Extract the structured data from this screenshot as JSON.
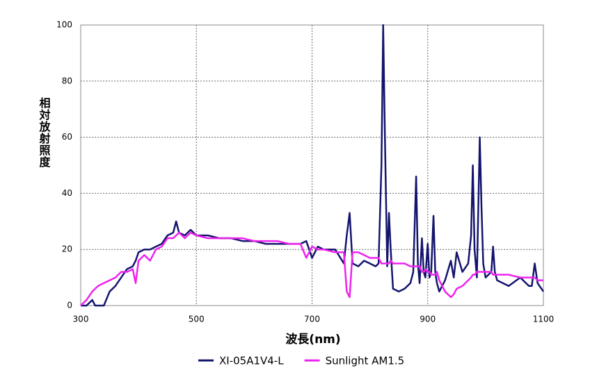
{
  "chart_data": {
    "type": "line",
    "x_label": "波長(nm)",
    "y_label": "相対放射照度",
    "x": [
      300,
      310,
      320,
      325,
      330,
      340,
      350,
      360,
      370,
      380,
      390,
      395,
      400,
      410,
      420,
      430,
      440,
      450,
      460,
      465,
      470,
      480,
      490,
      500,
      520,
      540,
      560,
      580,
      600,
      620,
      640,
      660,
      680,
      690,
      700,
      710,
      720,
      740,
      755,
      760,
      765,
      770,
      780,
      790,
      800,
      810,
      815,
      820,
      823,
      826,
      830,
      833,
      836,
      840,
      850,
      860,
      870,
      875,
      880,
      883,
      886,
      890,
      893,
      896,
      900,
      903,
      906,
      910,
      913,
      916,
      920,
      930,
      940,
      945,
      950,
      960,
      970,
      975,
      978,
      981,
      985,
      990,
      993,
      996,
      1000,
      1010,
      1013,
      1016,
      1020,
      1040,
      1060,
      1075,
      1080,
      1085,
      1090,
      1100
    ],
    "series": [
      {
        "name": "XI-05A1V4-L",
        "color": "#14146e",
        "values": [
          0,
          0,
          2,
          0,
          0,
          0,
          5,
          7,
          10,
          13,
          14,
          16,
          19,
          20,
          20,
          21,
          22,
          25,
          26,
          30,
          26,
          25,
          27,
          25,
          25,
          24,
          24,
          23,
          23,
          22,
          22,
          22,
          22,
          23,
          17,
          21,
          20,
          20,
          15,
          25,
          33,
          15,
          14,
          16,
          15,
          14,
          15,
          50,
          100,
          60,
          14,
          33,
          20,
          6,
          5,
          6,
          8,
          12,
          46,
          15,
          8,
          24,
          12,
          10,
          22,
          10,
          12,
          32,
          12,
          8,
          5,
          9,
          16,
          10,
          19,
          12,
          15,
          25,
          50,
          20,
          10,
          60,
          35,
          15,
          10,
          12,
          21,
          12,
          9,
          7,
          10,
          7,
          7,
          15,
          8,
          5
        ]
      },
      {
        "name": "Sunlight AM1.5",
        "color": "#ee22ee",
        "values": [
          0,
          2,
          5,
          6,
          7,
          8,
          9,
          10,
          12,
          12,
          13,
          8,
          16,
          18,
          16,
          20,
          21,
          24,
          24,
          25,
          26,
          24,
          26,
          25,
          24,
          24,
          24,
          24,
          23,
          23,
          23,
          22,
          22,
          17,
          21,
          20,
          20,
          19,
          19,
          5,
          3,
          19,
          19,
          18,
          17,
          17,
          17,
          15,
          15,
          15,
          15,
          15,
          16,
          15,
          15,
          15,
          14,
          14,
          14,
          14,
          14,
          12,
          12,
          13,
          12,
          12,
          11,
          11,
          11,
          12,
          9,
          5,
          3,
          4,
          6,
          7,
          9,
          10,
          11,
          11,
          12,
          12,
          12,
          12,
          12,
          12,
          11,
          11,
          11,
          11,
          10,
          10,
          10,
          10,
          9,
          9
        ]
      }
    ],
    "xlim": [
      300,
      1100
    ],
    "xticks": [
      300,
      500,
      700,
      900,
      1100
    ],
    "ylim": [
      0,
      100
    ],
    "yticks": [
      0,
      20,
      40,
      60,
      80,
      100
    ],
    "grid": true,
    "legend": "bottom"
  }
}
